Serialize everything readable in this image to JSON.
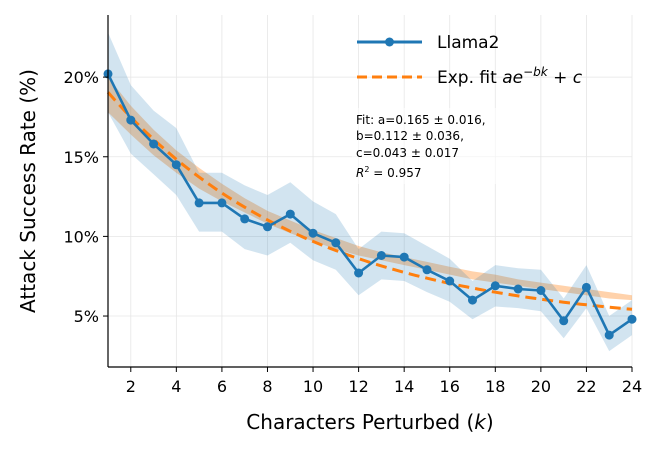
{
  "chart_data": {
    "type": "line",
    "xlabel": "Characters Perturbed",
    "xlabel_var": "k",
    "ylabel": "Attack Success Rate (%)",
    "xlim": [
      1,
      24
    ],
    "ylim": [
      1.8,
      23.9
    ],
    "xticks": [
      2,
      4,
      6,
      8,
      10,
      12,
      14,
      16,
      18,
      20,
      22,
      24
    ],
    "yticks": [
      5,
      10,
      15,
      20
    ],
    "ytick_suffix": "%",
    "grid": true,
    "legend_position": "top-right",
    "colors": {
      "series": "#1f77b4",
      "fit": "#ff7f0e"
    },
    "series": [
      {
        "name": "Llama2",
        "x": [
          1,
          2,
          3,
          4,
          5,
          6,
          7,
          8,
          9,
          10,
          11,
          12,
          13,
          14,
          15,
          16,
          17,
          18,
          19,
          20,
          21,
          22,
          23,
          24
        ],
        "values": [
          20.2,
          17.3,
          15.8,
          14.5,
          12.1,
          12.1,
          11.1,
          10.6,
          11.4,
          10.2,
          9.6,
          7.7,
          8.8,
          8.7,
          7.9,
          7.2,
          6.0,
          6.9,
          6.7,
          6.6,
          4.7,
          6.8,
          3.8,
          4.8
        ],
        "lower": [
          17.8,
          15.2,
          13.9,
          12.6,
          10.3,
          10.3,
          9.2,
          8.8,
          9.6,
          8.5,
          7.9,
          6.3,
          7.3,
          7.2,
          6.5,
          5.9,
          4.8,
          5.6,
          5.5,
          5.3,
          3.6,
          5.5,
          2.8,
          3.8
        ],
        "upper": [
          22.8,
          19.5,
          17.9,
          16.8,
          14.0,
          14.0,
          13.2,
          12.6,
          13.4,
          12.2,
          11.4,
          9.2,
          10.3,
          10.2,
          9.4,
          8.6,
          7.2,
          8.2,
          8.0,
          7.9,
          6.1,
          8.2,
          5.0,
          6.0
        ]
      }
    ],
    "fit": {
      "name": "Exp. fit",
      "formula": "ae^{-bk} + c",
      "a": 0.165,
      "b": 0.112,
      "c": 0.043,
      "band_lower_pct": [
        17.8,
        16.4,
        15.1,
        14.0,
        13.0,
        12.2,
        11.5,
        10.8,
        10.2,
        9.7,
        9.2,
        8.8,
        8.5,
        8.2,
        7.9,
        7.6,
        7.3,
        7.1,
        6.9,
        6.7,
        6.5,
        6.3,
        6.1,
        6.0
      ],
      "band_upper_pct": [
        20.0,
        18.2,
        16.7,
        15.4,
        14.3,
        13.3,
        12.4,
        11.6,
        11.0,
        10.4,
        9.9,
        9.4,
        9.0,
        8.7,
        8.4,
        8.1,
        7.8,
        7.6,
        7.3,
        7.1,
        6.9,
        6.7,
        6.5,
        6.3
      ]
    },
    "annotation": {
      "lines": [
        "Fit: a=0.165 ± 0.016,",
        "b=0.112 ± 0.036,",
        "c=0.043 ± 0.017"
      ],
      "r2_label": "R",
      "r2_value": " = 0.957"
    }
  }
}
